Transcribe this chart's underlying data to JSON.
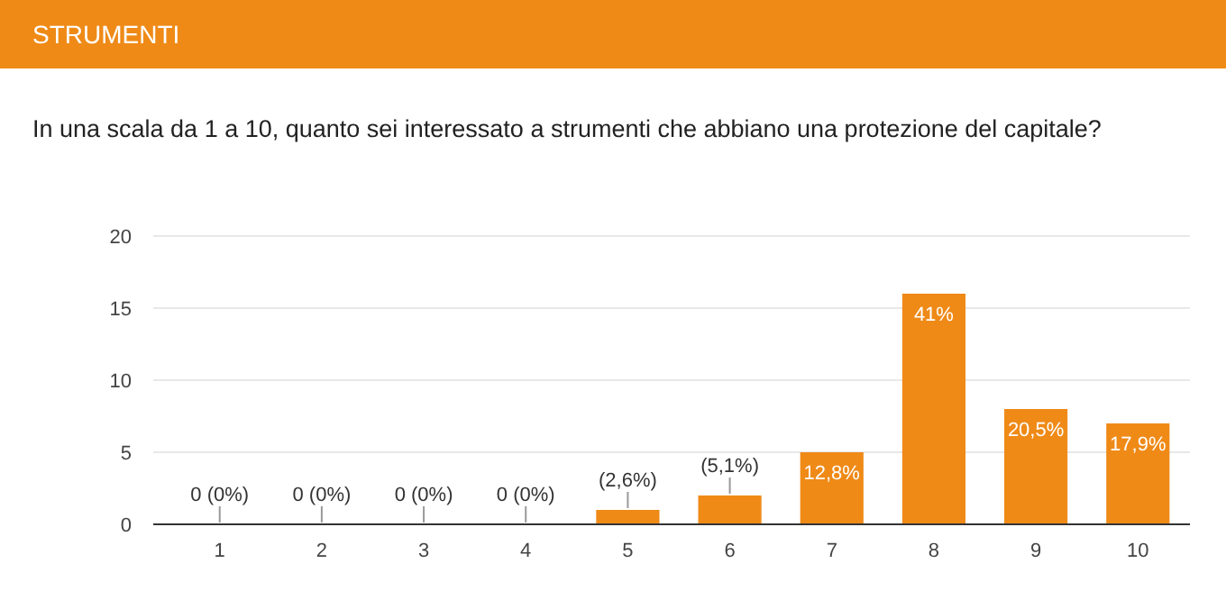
{
  "chart_data": {
    "type": "bar",
    "title": "STRUMENTI",
    "subtitle": "In una scala da 1 a 10, quanto sei interessato a strumenti che abbiano una protezione del capitale?",
    "categories": [
      "1",
      "2",
      "3",
      "4",
      "5",
      "6",
      "7",
      "8",
      "9",
      "10"
    ],
    "values": [
      0,
      0,
      0,
      0,
      1,
      2,
      5,
      16,
      8,
      7
    ],
    "annotations": [
      {
        "text": "0 (0%)",
        "x": "1",
        "y": 0
      },
      {
        "text": "0 (0%)",
        "x": "2",
        "y": 0
      },
      {
        "text": "0 (0%)",
        "x": "3",
        "y": 0
      },
      {
        "text": "0 (0%)",
        "x": "4",
        "y": 0
      },
      {
        "text": "(2,6%)",
        "x": "5",
        "y": 1
      },
      {
        "text": "(5,1%)",
        "x": "6",
        "y": 2
      },
      {
        "text": "12,8%",
        "x": "7",
        "y": 5
      },
      {
        "text": "41%",
        "x": "8",
        "y": 16
      },
      {
        "text": "20,5%",
        "x": "9",
        "y": 8
      },
      {
        "text": "17,9%",
        "x": "10",
        "y": 7
      }
    ],
    "color": "#ef8a17",
    "ylim": [
      0,
      20
    ],
    "yticks": [
      0,
      5,
      10,
      15,
      20
    ],
    "grid": "y"
  }
}
